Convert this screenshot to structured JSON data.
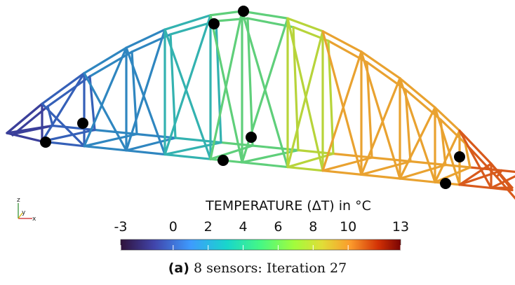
{
  "colorbar": {
    "title": "TEMPERATURE (ΔT) in °C",
    "range": [
      -3,
      13
    ],
    "ticks": [
      -3,
      0,
      2,
      4,
      6,
      8,
      10,
      13
    ]
  },
  "axes_triad": {
    "z": "z",
    "y": "y",
    "x": "x"
  },
  "caption": {
    "label": "(a)",
    "text": "8 sensors: Iteration 27"
  }
}
